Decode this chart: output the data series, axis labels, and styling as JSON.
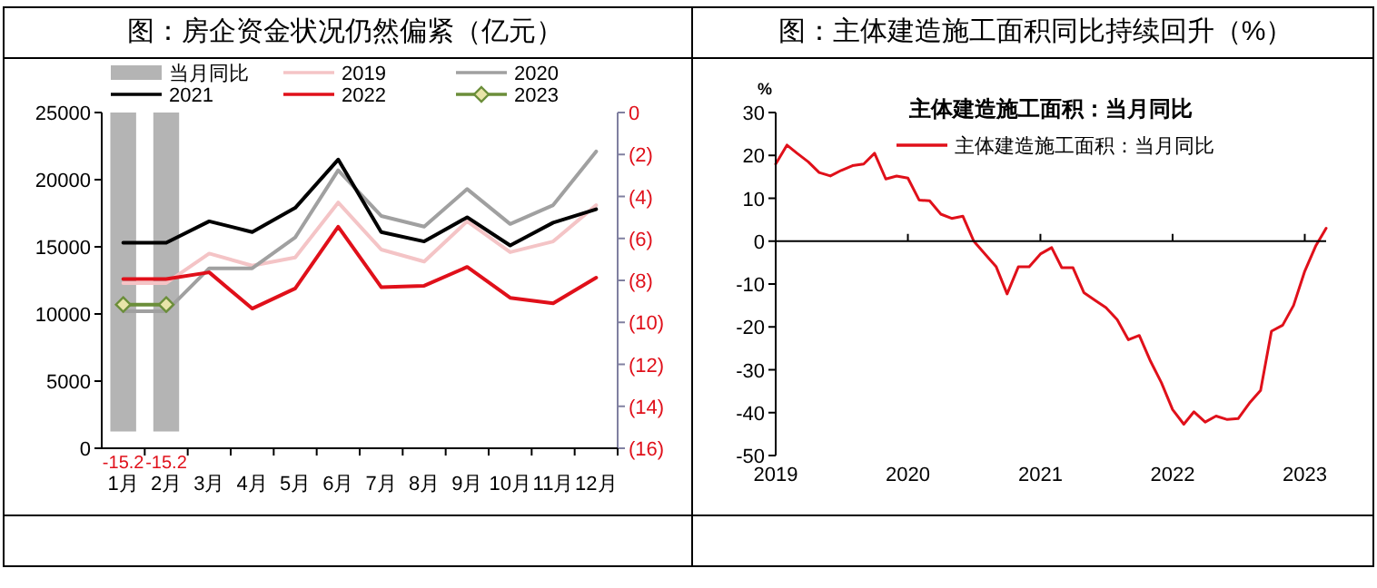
{
  "chart_data": [
    {
      "type": "line",
      "title": "图：房企资金状况仍然偏紧（亿元）",
      "categories": [
        "1月",
        "2月",
        "3月",
        "4月",
        "5月",
        "6月",
        "7月",
        "8月",
        "9月",
        "10月",
        "11月",
        "12月"
      ],
      "series": [
        {
          "name": "当月同比",
          "type": "bar",
          "axis": "y2",
          "color": "#b4b4b4",
          "values": [
            -15.2,
            -15.2,
            null,
            null,
            null,
            null,
            null,
            null,
            null,
            null,
            null,
            null
          ],
          "value_labels": [
            "-15.2",
            "-15.2",
            null,
            null,
            null,
            null,
            null,
            null,
            null,
            null,
            null,
            null
          ]
        },
        {
          "name": "2019",
          "color": "#f4c4c6",
          "values": [
            12300,
            12300,
            14500,
            13600,
            14200,
            18300,
            14800,
            13900,
            16900,
            14600,
            15400,
            18100
          ]
        },
        {
          "name": "2020",
          "color": "#a0a0a0",
          "values": [
            10200,
            10200,
            13400,
            13400,
            15700,
            20700,
            17300,
            16500,
            19300,
            16700,
            18100,
            22100
          ]
        },
        {
          "name": "2021",
          "color": "#000000",
          "values": [
            15300,
            15300,
            16900,
            16100,
            17900,
            21500,
            16100,
            15400,
            17200,
            15100,
            16800,
            17800
          ]
        },
        {
          "name": "2022",
          "color": "#e0101a",
          "values": [
            12600,
            12600,
            13100,
            10400,
            11900,
            16500,
            12000,
            12100,
            13500,
            11200,
            10800,
            12700
          ]
        },
        {
          "name": "2023",
          "color": "#6b8e3a",
          "marker": "diamond",
          "values": [
            10700,
            10700,
            null,
            null,
            null,
            null,
            null,
            null,
            null,
            null,
            null,
            null
          ]
        }
      ],
      "ylim": [
        0,
        25000
      ],
      "yticks": [
        0,
        5000,
        10000,
        15000,
        20000,
        25000
      ],
      "y2lim": [
        -16,
        0
      ],
      "y2ticks": [
        {
          "value": -16,
          "label": "(16)"
        },
        {
          "value": -14,
          "label": "(14)"
        },
        {
          "value": -12,
          "label": "(12)"
        },
        {
          "value": -10,
          "label": "(10)"
        },
        {
          "value": -8,
          "label": "(8)"
        },
        {
          "value": -6,
          "label": "(6)"
        },
        {
          "value": -4,
          "label": "(4)"
        },
        {
          "value": -2,
          "label": "(2)"
        },
        0
      ],
      "legend": "top",
      "grid": false
    },
    {
      "type": "line",
      "title": "图：主体建造施工面积同比持续回升（%）",
      "subtitle": "主体建造施工面积：当月同比",
      "ylabel": "%",
      "x": [
        "2019-01",
        "2019-02",
        "2019-03",
        "2019-04",
        "2019-05",
        "2019-06",
        "2019-07",
        "2019-08",
        "2019-09",
        "2019-10",
        "2019-11",
        "2019-12",
        "2020-01",
        "2020-02",
        "2020-03",
        "2020-04",
        "2020-05",
        "2020-06",
        "2020-07",
        "2020-08",
        "2020-09",
        "2020-10",
        "2020-11",
        "2020-12",
        "2021-01",
        "2021-02",
        "2021-03",
        "2021-04",
        "2021-05",
        "2021-06",
        "2021-07",
        "2021-08",
        "2021-09",
        "2021-10",
        "2021-11",
        "2021-12",
        "2022-01",
        "2022-02",
        "2022-03",
        "2022-04",
        "2022-05",
        "2022-06",
        "2022-07",
        "2022-08",
        "2022-09",
        "2022-10",
        "2022-11",
        "2022-12",
        "2023-01",
        "2023-02",
        "2023-03"
      ],
      "series": [
        {
          "name": "主体建造施工面积：当月同比",
          "color": "#e0101a",
          "values": [
            18,
            22.4,
            20.5,
            18.5,
            16,
            15.2,
            16.5,
            17.6,
            18,
            20.5,
            14.5,
            15.2,
            14.7,
            9.6,
            9.4,
            6.3,
            5.3,
            5.8,
            0,
            -3,
            -6,
            -12.3,
            -6,
            -6,
            -3,
            -1.5,
            -6.2,
            -6.2,
            -12,
            -13.8,
            -15.5,
            -18.3,
            -23,
            -22,
            -28,
            -33,
            -39.3,
            -42.7,
            -39.8,
            -42.2,
            -40.8,
            -41.6,
            -41.4,
            -37.8,
            -34.8,
            -21,
            -19.6,
            -15,
            -7,
            -1,
            3
          ]
        }
      ],
      "xlim": [
        "2019-01",
        "2023-03"
      ],
      "xticks": [
        "2019",
        "2020",
        "2021",
        "2022",
        "2023"
      ],
      "ylim": [
        -50,
        30
      ],
      "yticks": [
        -50,
        -40,
        -30,
        -20,
        -10,
        0,
        10,
        20,
        30
      ],
      "ref_lines": [
        {
          "axis": "y",
          "value": 0,
          "color": "#000000"
        }
      ],
      "legend": "top",
      "grid": false
    }
  ]
}
